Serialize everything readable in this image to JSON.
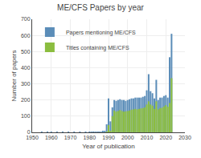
{
  "chart_data": {
    "type": "bar",
    "title": "ME/CFS Papers by year",
    "xlabel": "Year of publication",
    "ylabel": "Number of papers",
    "x": [
      1955,
      1958,
      1960,
      1963,
      1966,
      1969,
      1972,
      1975,
      1978,
      1980,
      1981,
      1982,
      1983,
      1984,
      1985,
      1986,
      1987,
      1988,
      1989,
      1990,
      1991,
      1992,
      1993,
      1994,
      1995,
      1996,
      1997,
      1998,
      1999,
      2000,
      2001,
      2002,
      2003,
      2004,
      2005,
      2006,
      2007,
      2008,
      2009,
      2010,
      2011,
      2012,
      2013,
      2014,
      2015,
      2016,
      2017,
      2018,
      2019,
      2020,
      2021,
      2022,
      2023
    ],
    "series": [
      {
        "name": "Papers mentioning ME/CFS",
        "color": "#5B8DB8",
        "values": [
          3,
          2,
          2,
          2,
          2,
          2,
          2,
          2,
          2,
          2,
          2,
          2,
          2,
          2,
          3,
          4,
          6,
          10,
          50,
          210,
          68,
          155,
          200,
          195,
          200,
          205,
          200,
          200,
          195,
          200,
          205,
          210,
          210,
          215,
          215,
          215,
          215,
          220,
          225,
          260,
          360,
          255,
          242,
          210,
          325,
          200,
          215,
          215,
          225,
          230,
          215,
          465,
          610
        ]
      },
      {
        "name": "Titles containing ME/CFS",
        "color": "#8BBD3F",
        "values": [
          0,
          0,
          0,
          0,
          0,
          0,
          0,
          0,
          0,
          0,
          0,
          0,
          0,
          0,
          0,
          0,
          0,
          0,
          2,
          45,
          10,
          100,
          135,
          128,
          132,
          138,
          132,
          128,
          130,
          132,
          135,
          140,
          142,
          145,
          142,
          145,
          148,
          150,
          155,
          172,
          192,
          172,
          165,
          145,
          192,
          142,
          150,
          152,
          160,
          168,
          158,
          182,
          335
        ]
      }
    ],
    "xlim": [
      1950,
      2030
    ],
    "xticks": [
      1950,
      1960,
      1970,
      1980,
      1990,
      2000,
      2010,
      2020,
      2030
    ],
    "ylim": [
      0,
      700
    ],
    "yticks": [
      0,
      100,
      200,
      300,
      400,
      500,
      600,
      700
    ],
    "stacked": false,
    "grid": true,
    "legend": "upper left"
  }
}
